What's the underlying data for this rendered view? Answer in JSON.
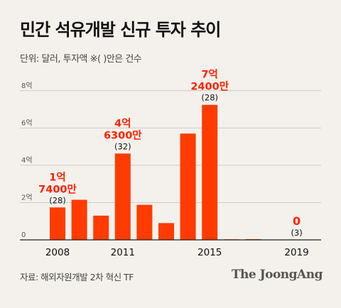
{
  "title": "민간 석유개발 신규 투자 추이",
  "subtitle": "단위: 달러, 투자액   ※( )안은 건수",
  "source": "자료: 해외자원개발 2차 혁신 TF",
  "brand": "The JoongAng",
  "colors": {
    "bar": "#ff3b00",
    "highlight_label": "#ff2200",
    "axis": "#222222",
    "grid": "#cccccc",
    "tick": "#555555"
  },
  "chart_data": {
    "type": "bar",
    "categories": [
      "2008",
      "2009",
      "2010",
      "2011",
      "2012",
      "2013",
      "2014",
      "2015",
      "2016",
      "2017",
      "2018",
      "2019"
    ],
    "x_tick_labels": [
      "2008",
      "2011",
      "2015",
      "2019"
    ],
    "values": [
      1.74,
      2.15,
      1.3,
      4.63,
      1.88,
      0.9,
      5.7,
      7.24,
      0.02,
      0.04,
      0.0,
      0.0
    ],
    "y_ticks": [
      0,
      2,
      4,
      6,
      8
    ],
    "y_tick_labels": [
      "0",
      "2억",
      "4억",
      "6억",
      "8억"
    ],
    "ylim": [
      0,
      8.6
    ],
    "annotations": [
      {
        "index": 0,
        "amount_line1": "1억",
        "amount_line2": "7400만",
        "count": "(28)"
      },
      {
        "index": 3,
        "amount_line1": "4억",
        "amount_line2": "6300만",
        "count": "(32)"
      },
      {
        "index": 7,
        "amount_line1": "7억",
        "amount_line2": "2400만",
        "count": "(28)"
      },
      {
        "index": 11,
        "amount_line1": "0",
        "amount_line2": "",
        "count": "(3)"
      }
    ]
  }
}
